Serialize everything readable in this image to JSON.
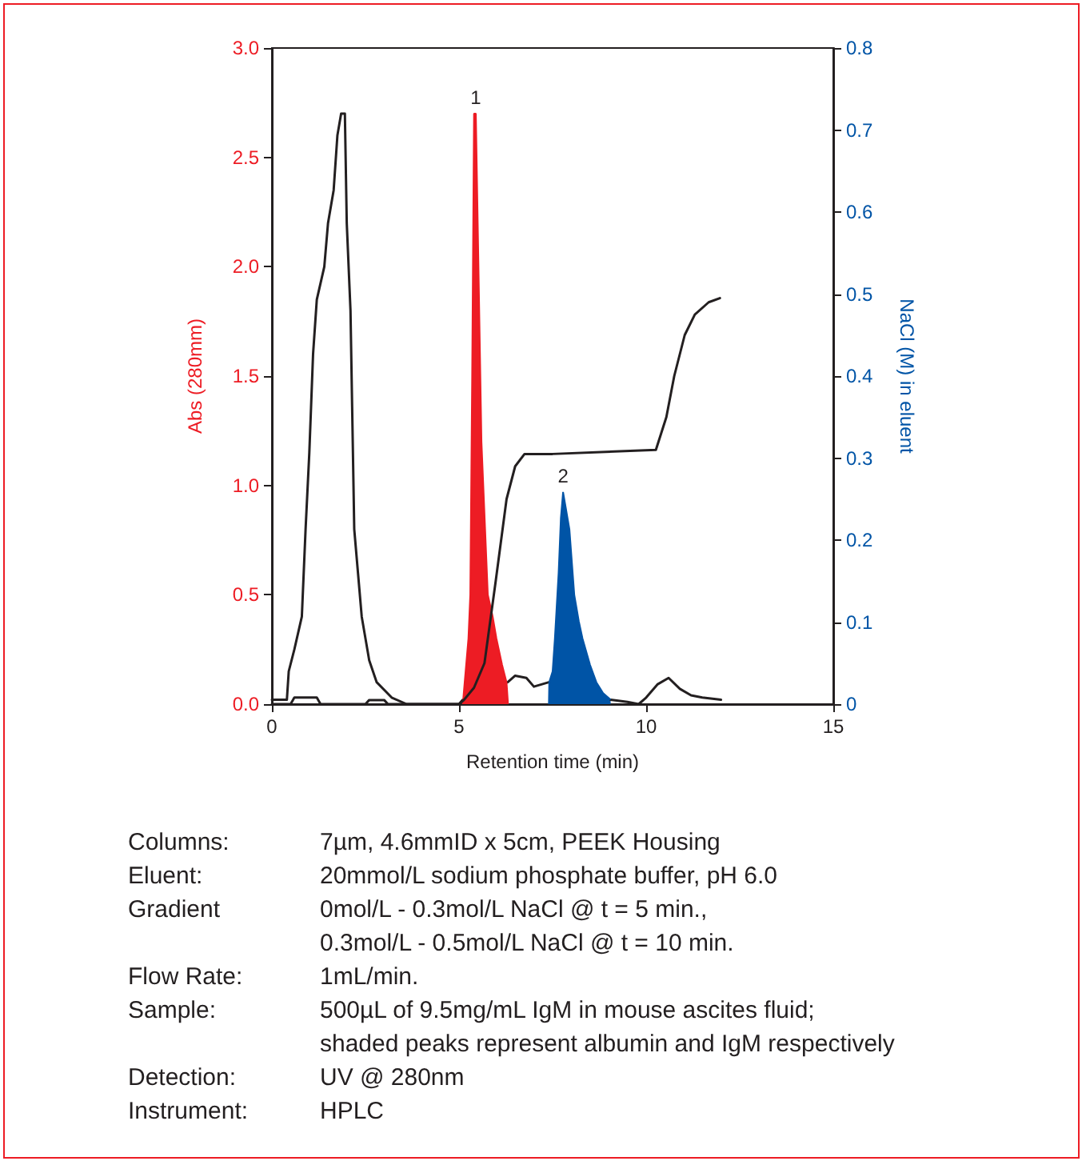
{
  "chart_data": {
    "type": "line",
    "xlabel": "Retention time (min)",
    "ylabel": "Abs (280mm)",
    "y2label": "NaCl (M) in eluent",
    "xlim": [
      0,
      15
    ],
    "xticks": [
      0,
      5,
      10,
      15
    ],
    "ylim": [
      0,
      3
    ],
    "yticks": [
      {
        "value": 0,
        "label": "0.0"
      },
      0.5,
      {
        "value": 1,
        "label": "1.0"
      },
      1.5,
      {
        "value": 2,
        "label": "2.0"
      },
      2.5,
      {
        "value": 3,
        "label": "3.0"
      }
    ],
    "y2lim": [
      0,
      0.8
    ],
    "y2ticks": [
      0,
      0.1,
      0.2,
      0.3,
      0.4,
      0.5,
      0.6,
      0.7,
      0.8
    ],
    "grid": false,
    "series": [
      {
        "color": "#231f20",
        "x": [
          0,
          0.4,
          0.45,
          0.6,
          0.8,
          0.9,
          1.0,
          1.1,
          1.2,
          1.4,
          1.5,
          1.65,
          1.75,
          1.85,
          1.95,
          2.0,
          2.1,
          2.2,
          2.3,
          2.4,
          2.6,
          2.8,
          3.2,
          3.6,
          5.0,
          5.1,
          5.2,
          6.3,
          6.5,
          6.8,
          7.0,
          7.4,
          7.5,
          9.05,
          9.5,
          9.8,
          10.0,
          10.3,
          10.6,
          10.9,
          11.2,
          11.5,
          12.0
        ],
        "values": [
          0.02,
          0.02,
          0.15,
          0.25,
          0.4,
          0.8,
          1.15,
          1.6,
          1.85,
          2.0,
          2.2,
          2.35,
          2.6,
          2.7,
          2.7,
          2.2,
          1.8,
          0.8,
          0.6,
          0.4,
          0.2,
          0.1,
          0.03,
          0,
          0,
          0.02,
          null,
          0.1,
          0.13,
          0.12,
          0.08,
          0.1,
          null,
          0.02,
          0.01,
          0,
          0.03,
          0.09,
          0.12,
          0.07,
          0.04,
          0.03,
          0.02
        ]
      },
      {
        "type": "area",
        "color": "#ed1c24",
        "x": [
          5.1,
          5.15,
          5.25,
          5.3,
          5.35,
          5.4,
          5.45,
          5.5,
          5.6,
          5.77,
          5.9,
          6.0,
          6.15,
          6.27,
          6.3,
          6.31
        ],
        "values": [
          0,
          0.1,
          0.3,
          0.5,
          1.5,
          2.7,
          2.7,
          2.2,
          1.2,
          0.5,
          0.4,
          0.3,
          0.18,
          0.1,
          0.1,
          0
        ]
      },
      {
        "type": "area",
        "color": "#0054a6",
        "x": [
          7.4,
          7.41,
          7.5,
          7.56,
          7.66,
          7.72,
          7.78,
          7.85,
          7.95,
          8.08,
          8.2,
          8.3,
          8.5,
          8.67,
          8.85,
          9.05
        ],
        "values": [
          0,
          0.1,
          0.15,
          0.3,
          0.6,
          0.85,
          0.97,
          0.9,
          0.8,
          0.5,
          0.38,
          0.3,
          0.18,
          0.1,
          0.05,
          0.02
        ]
      },
      {
        "axis": "y2",
        "color": "#231f20",
        "x": [
          0,
          0.5,
          0.6,
          1.2,
          1.3,
          2.5,
          2.6,
          3.0,
          3.1,
          5.0,
          5.13,
          5.4,
          5.68,
          5.98,
          6.27,
          6.5,
          6.75,
          7.5,
          10.26,
          10.4,
          10.54,
          10.75,
          11.03,
          11.3,
          11.67,
          11.97
        ],
        "values": [
          0,
          0,
          0.008,
          0.008,
          0,
          0,
          0.005,
          0.005,
          0,
          0,
          0.005,
          0.02,
          0.05,
          0.15,
          0.25,
          0.29,
          0.305,
          0.305,
          0.31,
          0.33,
          0.35,
          0.4,
          0.45,
          0.475,
          0.49,
          0.495
        ]
      }
    ],
    "annotations": [
      {
        "text": "1",
        "x": 5.45,
        "y": 2.7
      },
      {
        "text": "2",
        "x": 7.78,
        "y": 0.97
      },
      "Columns:",
      "7µm, 4.6mmID x 5cm, PEEK Housing",
      "Eluent:",
      "20mmol/L sodium phosphate buffer, pH 6.0",
      "Gradient",
      "0mol/L - 0.3mol/L NaCl @ t = 5 min.,\n0.3mol/L - 0.5mol/L NaCl @ t = 10 min.",
      "Flow Rate:",
      "1mL/min.",
      "Sample:",
      "500µL of 9.5mg/mL IgM in mouse ascites fluid;\nshaded peaks represent albumin and IgM respectively",
      "Detection:",
      "UV @ 280nm",
      "Instrument:",
      "HPLC"
    ]
  }
}
